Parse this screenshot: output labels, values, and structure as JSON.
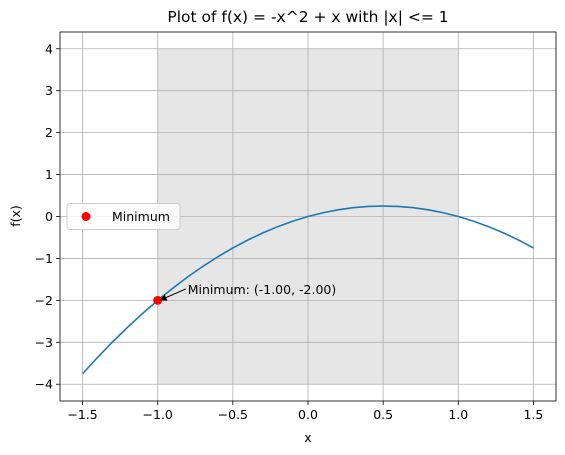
{
  "chart_data": {
    "type": "line",
    "title": "Plot of f(x) = -x^2 + x with |x| <= 1",
    "xlabel": "x",
    "ylabel": "f(x)",
    "xlim": [
      -1.65,
      1.65
    ],
    "ylim": [
      -4.4,
      4.4
    ],
    "xticks": [
      {
        "value": -1.5,
        "label": "−1.5"
      },
      {
        "value": -1,
        "label": "−1.0"
      },
      {
        "value": -0.5,
        "label": "−0.5"
      },
      {
        "value": 0,
        "label": "0.0"
      },
      0.5,
      {
        "value": 1,
        "label": "1.0"
      },
      1.5
    ],
    "yticks": [
      {
        "value": -4,
        "label": "−4"
      },
      {
        "value": -3,
        "label": "−3"
      },
      {
        "value": -2,
        "label": "−2"
      },
      {
        "value": -1,
        "label": "−1"
      },
      0,
      1,
      2,
      3,
      4
    ],
    "grid": true,
    "shaded_region": {
      "x": [
        -1,
        1
      ],
      "y": [
        -4,
        4
      ],
      "color": "#e6e6e6"
    },
    "series": [
      {
        "type": "line",
        "color": "#1f77b4",
        "x": [
          -1.5,
          -1.4,
          -1.3,
          -1.2,
          -1.1,
          -1.0,
          -0.9,
          -0.8,
          -0.7,
          -0.6,
          -0.5,
          -0.4,
          -0.3,
          -0.2,
          -0.1,
          0,
          0.1,
          0.2,
          0.3,
          0.4,
          0.5,
          0.6,
          0.7,
          0.8,
          0.9,
          1.0,
          1.1,
          1.2,
          1.3,
          1.4,
          1.5
        ],
        "values": [
          -3.75,
          -3.36,
          -2.99,
          -2.64,
          -2.31,
          -2,
          -1.71,
          -1.44,
          -1.19,
          -0.96,
          -0.75,
          -0.56,
          -0.39,
          -0.24,
          -0.11,
          0,
          0.09,
          0.16,
          0.21,
          0.24,
          0.25,
          0.24,
          0.21,
          0.16,
          0.09,
          0,
          -0.11,
          -0.24,
          -0.39,
          -0.56,
          -0.75
        ]
      },
      {
        "type": "scatter",
        "name": "Minimum",
        "color": "#ff0000",
        "x": [
          -1
        ],
        "values": [
          -2
        ]
      }
    ],
    "legend": "center left",
    "annotations": [
      {
        "text": "Minimum: (-1.00, -2.00)",
        "xy": [
          -1,
          -2
        ],
        "xytext": [
          -0.8,
          -1.8
        ]
      }
    ]
  }
}
